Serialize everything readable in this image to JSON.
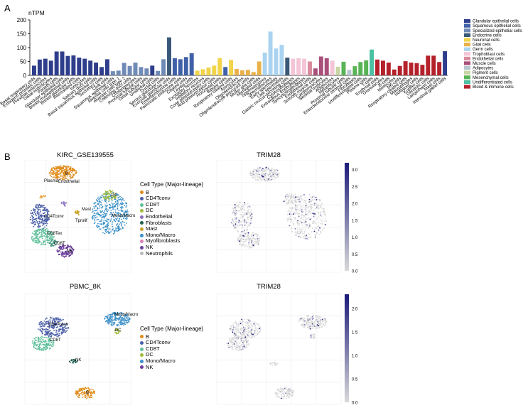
{
  "panel_a_label": "A",
  "panel_b_label": "B",
  "colors": {
    "Glandular epithelial cells": "#2e3e8c",
    "Squamous epithelial cells": "#4060a8",
    "Specialized epithelial cells": "#6f8ab6",
    "Endocrine cells": "#3a5878",
    "Neuronal cells": "#f2d44a",
    "Glial cells": "#eab14a",
    "Germ cells": "#a9d3f0",
    "Trophoblast cells": "#f3c5d6",
    "Endothelial cells": "#d98a9c",
    "Muscle cells": "#a94f7a",
    "Adipocytes": "#b8c6cf",
    "Pigment cells": "#c7d6a2",
    "Mesenchymal cells": "#58b455",
    "Undifferentiated cells": "#4cc0a2",
    "Blood & immune cells": "#b4212b",
    "cmap_low": "#d9d9d9",
    "cmap_high": "#1a1a7a",
    "B": "#e08c1b",
    "CD4Tconv": "#4a5fa8",
    "CD8T": "#5fbf9a",
    "DC": "#9dbb3a",
    "Endothelial": "#8a6fbf",
    "Fibroblasts": "#1f5f52",
    "Mast": "#c9a227",
    "Mono/Macro": "#3a8fc7",
    "Myofibroblasts": "#d87fb8",
    "NK": "#6a3d9a",
    "Neutrophils": "#b9b9b9",
    "Plasma": "#e8a640",
    "Tprolif": "#3c8f78"
  },
  "chart_data": [
    {
      "type": "bar",
      "ylabel": "nTPM",
      "ylim": [
        0,
        200
      ],
      "yticks": [
        0,
        50,
        100,
        150,
        200
      ],
      "legend_placement": "right",
      "legend": [
        "Glandular epithelial cells",
        "Squamous epithelial cells",
        "Specialized epithelial cells",
        "Endocrine cells",
        "Neuronal cells",
        "Glial cells",
        "Germ cells",
        "Trophoblast cells",
        "Endothelial cells",
        "Muscle cells",
        "Adipocytes",
        "Pigment cells",
        "Mesenchymal cells",
        "Undifferentiated cells",
        "Blood & immune cells"
      ],
      "categories": [
        "Basal respiratory cells",
        "Ectoderm prostatic cells",
        "Proximal enterocytes",
        "Distal enterocytes",
        "Paneth cells",
        "Glandular epithelial cells",
        "Breast myoepithelial cells",
        "Breast glandular cells",
        "Intercalated cells",
        "Ionocytes",
        "Salivary duct cells",
        "Basal squamous epithelial cells",
        "Secretory cells",
        "Club cells",
        "Squamous epithelial cells",
        "Alveolar cells type 1",
        "Alveolar cells type 2",
        "Collecting duct cells",
        "Cholangiocytes",
        "Proximal tubular cells",
        "Distal tubular cells",
        "Urothelial cells",
        "Ductal cells",
        "Serous glandular cells",
        "Exocrine glandular cells",
        "Enteroendocrine cells",
        "Pancreatic endocrine cells",
        "Ciliated cells",
        "Leydig cells",
        "Excitatory neurons",
        "Inhibitory neurons",
        "Cone photoreceptor cells",
        "Rod photoreceptor cells",
        "Horizontal cells",
        "Bipolar cells",
        "Respiratory ciliated cells",
        "Astrocytes",
        "Oligodendrocytes",
        "Oligodendrocyte precursor cells",
        "Muller glia cells",
        "Microglial cells",
        "Spermatogonia",
        "Spermatocytes",
        "Early spermatids",
        "Late spermatids",
        "Gastric mucus-secreting cells",
        "Cytotrophoblasts",
        "Extravillous trophoblasts",
        "Syncytiotrophoblasts",
        "Endothelial cells",
        "Smooth muscle cells",
        "Cardiomyocytes",
        "Skeletal myocytes",
        "Adipocytes",
        "Melanocytes",
        "Proximal tubular cells",
        "Enteroendocrine stromal cells",
        "Fibroblasts",
        "Undifferentiated cells",
        "Plasma cells",
        "T-cells",
        "Erythroid cells",
        "Granulocytes",
        "B-cells",
        "Monocytes",
        "NK-cells",
        "Respiratory ciliated cells",
        "Macrophages",
        "Hofbauer cells",
        "Kupffer cells",
        "Dendritic cells",
        "Langerhans cells",
        "Mast cells",
        "Intestinal goblet cells"
      ],
      "values": [
        35,
        57,
        60,
        53,
        86,
        86,
        70,
        72,
        64,
        60,
        53,
        46,
        30,
        58,
        15,
        17,
        45,
        34,
        46,
        30,
        25,
        35,
        16,
        58,
        137,
        62,
        58,
        66,
        80,
        17,
        22,
        28,
        35,
        62,
        30,
        56,
        23,
        18,
        20,
        12,
        50,
        82,
        158,
        97,
        110,
        64,
        60,
        62,
        60,
        50,
        25,
        68,
        62,
        53,
        31,
        49,
        20,
        33,
        48,
        54,
        93,
        57,
        53,
        46,
        21,
        34,
        51,
        46,
        44,
        38,
        71,
        71,
        48,
        87
      ],
      "bar_groups": [
        "Glandular epithelial cells",
        "Glandular epithelial cells",
        "Glandular epithelial cells",
        "Glandular epithelial cells",
        "Glandular epithelial cells",
        "Glandular epithelial cells",
        "Glandular epithelial cells",
        "Glandular epithelial cells",
        "Glandular epithelial cells",
        "Glandular epithelial cells",
        "Glandular epithelial cells",
        "Glandular epithelial cells",
        "Glandular epithelial cells",
        "Glandular epithelial cells",
        "Specialized epithelial cells",
        "Specialized epithelial cells",
        "Specialized epithelial cells",
        "Specialized epithelial cells",
        "Specialized epithelial cells",
        "Specialized epithelial cells",
        "Specialized epithelial cells",
        "Glandular epithelial cells",
        "Specialized epithelial cells",
        "Specialized epithelial cells",
        "Endocrine cells",
        "Squamous epithelial cells",
        "Squamous epithelial cells",
        "Squamous epithelial cells",
        "Squamous epithelial cells",
        "Neuronal cells",
        "Neuronal cells",
        "Neuronal cells",
        "Neuronal cells",
        "Neuronal cells",
        "Squamous epithelial cells",
        "Neuronal cells",
        "Glial cells",
        "Glial cells",
        "Glial cells",
        "Glial cells",
        "Glial cells",
        "Germ cells",
        "Germ cells",
        "Germ cells",
        "Germ cells",
        "Endocrine cells",
        "Trophoblast cells",
        "Trophoblast cells",
        "Trophoblast cells",
        "Endothelial cells",
        "Muscle cells",
        "Muscle cells",
        "Muscle cells",
        "Trophoblast cells",
        "Pigment cells",
        "Mesenchymal cells",
        "Adipocytes",
        "Mesenchymal cells",
        "Mesenchymal cells",
        "Mesenchymal cells",
        "Undifferentiated cells",
        "Blood & immune cells",
        "Blood & immune cells",
        "Blood & immune cells",
        "Blood & immune cells",
        "Blood & immune cells",
        "Blood & immune cells",
        "Blood & immune cells",
        "Blood & immune cells",
        "Blood & immune cells",
        "Blood & immune cells",
        "Blood & immune cells",
        "Blood & immune cells",
        "Glandular epithelial cells"
      ],
      "grid": false
    },
    {
      "type": "scatter",
      "title": "KIRC_GSE139555",
      "legend_title": "Cell Type (Major-lineage)",
      "legend": [
        "B",
        "CD4Tconv",
        "CD8T",
        "DC",
        "Endothelial",
        "Fibroblasts",
        "Mast",
        "Mono/Macro",
        "Myofibroblasts",
        "NK",
        "Neutrophils"
      ],
      "cluster_labels": [
        "B",
        "Plasma",
        "Endothelial",
        "Mast",
        "CD4Tconv",
        "Tprolif",
        "CD8Tex",
        "CD8T",
        "NK",
        "DC",
        "Mono/Macro"
      ],
      "grid": true
    },
    {
      "type": "scatter",
      "title": "TRIM28",
      "colorbar_ticks": [
        "3.0",
        "2.5",
        "2.0",
        "1.5",
        "1.0",
        "0.5",
        "0.0"
      ],
      "colorbar_range": [
        0,
        3.2
      ],
      "grid": true
    },
    {
      "type": "scatter",
      "title": "PBMC_8K",
      "legend_title": "Cell Type (Major-lineage)",
      "legend": [
        "B",
        "CD4Tconv",
        "CD8T",
        "DC",
        "Mono/Macro",
        "NK"
      ],
      "cluster_labels": [
        "CD4Tconv",
        "Mono/Macro",
        "DC",
        "CD8T",
        "NK",
        "B"
      ],
      "grid": true
    },
    {
      "type": "scatter",
      "title": "TRIM28",
      "colorbar_ticks": [
        "2.0",
        "1.5",
        "1.0",
        "0.5",
        "0.0"
      ],
      "colorbar_range": [
        0,
        2.3
      ],
      "grid": true
    }
  ]
}
